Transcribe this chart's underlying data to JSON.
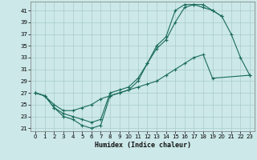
{
  "xlabel": "Humidex (Indice chaleur)",
  "ylabel": "",
  "bg_color": "#cce8e8",
  "grid_color": "#aacccc",
  "line_color": "#1a6b5a",
  "xlim": [
    -0.5,
    23.5
  ],
  "ylim": [
    20.5,
    42.5
  ],
  "xticks": [
    0,
    1,
    2,
    3,
    4,
    5,
    6,
    7,
    8,
    9,
    10,
    11,
    12,
    13,
    14,
    15,
    16,
    17,
    18,
    19,
    20,
    21,
    22,
    23
  ],
  "yticks": [
    21,
    23,
    25,
    27,
    29,
    31,
    33,
    35,
    37,
    39,
    41
  ],
  "line1_x": [
    0,
    1,
    2,
    3,
    4,
    5,
    6,
    7,
    8,
    9,
    10,
    11,
    12,
    13,
    14,
    15,
    16,
    17,
    18,
    19,
    20,
    21,
    22,
    23
  ],
  "line1_y": [
    27,
    26.5,
    24.5,
    23,
    22.5,
    21.5,
    21,
    21.5,
    26.5,
    27,
    27.5,
    29,
    32,
    34.5,
    36,
    39,
    41.5,
    42,
    42,
    41,
    40,
    37,
    33,
    30
  ],
  "line2_x": [
    0,
    1,
    2,
    3,
    4,
    5,
    6,
    7,
    8,
    9,
    10,
    11,
    12,
    13,
    14,
    15,
    16,
    17,
    18,
    19,
    20,
    22
  ],
  "line2_y": [
    27,
    26.5,
    24.5,
    23.5,
    23,
    22.5,
    22,
    22.5,
    27,
    27.5,
    28,
    29.5,
    32,
    35,
    36.5,
    41,
    42,
    42,
    41.5,
    41,
    40,
    null
  ],
  "line3_x": [
    0,
    1,
    2,
    3,
    4,
    5,
    6,
    7,
    8,
    9,
    10,
    11,
    12,
    13,
    14,
    15,
    16,
    17,
    18,
    19,
    23
  ],
  "line3_y": [
    27,
    26.5,
    25,
    24,
    24,
    24.5,
    25,
    26,
    26.5,
    27,
    27.5,
    28,
    28.5,
    29,
    30,
    31,
    32,
    33,
    33.5,
    29.5,
    30
  ]
}
